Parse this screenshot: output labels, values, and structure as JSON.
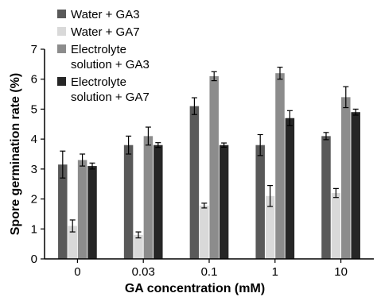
{
  "chart_data": {
    "type": "bar",
    "xlabel": "GA concentration (mM)",
    "ylabel": "Spore germination rate (%)",
    "ylim": [
      0,
      7
    ],
    "yticks": [
      0,
      1,
      2,
      3,
      4,
      5,
      6,
      7
    ],
    "categories": [
      "0",
      "0.03",
      "0.1",
      "1",
      "10"
    ],
    "grid": false,
    "legend_position": "top-left",
    "series": [
      {
        "name": "Water + GA3",
        "color": "#595959",
        "values": [
          3.15,
          3.8,
          5.1,
          3.8,
          4.1
        ],
        "errors": [
          0.45,
          0.3,
          0.28,
          0.35,
          0.12
        ]
      },
      {
        "name": "Water + GA7",
        "color": "#d9d9d9",
        "values": [
          1.1,
          0.8,
          1.78,
          2.1,
          2.2
        ],
        "errors": [
          0.2,
          0.1,
          0.08,
          0.35,
          0.15
        ]
      },
      {
        "name": "Electrolyte solution + GA3",
        "name_lines": [
          "Electrolyte",
          "solution + GA3"
        ],
        "color": "#8c8c8c",
        "values": [
          3.3,
          4.1,
          6.1,
          6.2,
          5.4
        ],
        "errors": [
          0.2,
          0.3,
          0.15,
          0.2,
          0.35
        ]
      },
      {
        "name": "Electrolyte solution + GA7",
        "name_lines": [
          "Electrolyte",
          "solution + GA7"
        ],
        "color": "#262626",
        "values": [
          3.1,
          3.8,
          3.8,
          4.7,
          4.9
        ],
        "errors": [
          0.1,
          0.08,
          0.07,
          0.25,
          0.1
        ]
      }
    ]
  }
}
